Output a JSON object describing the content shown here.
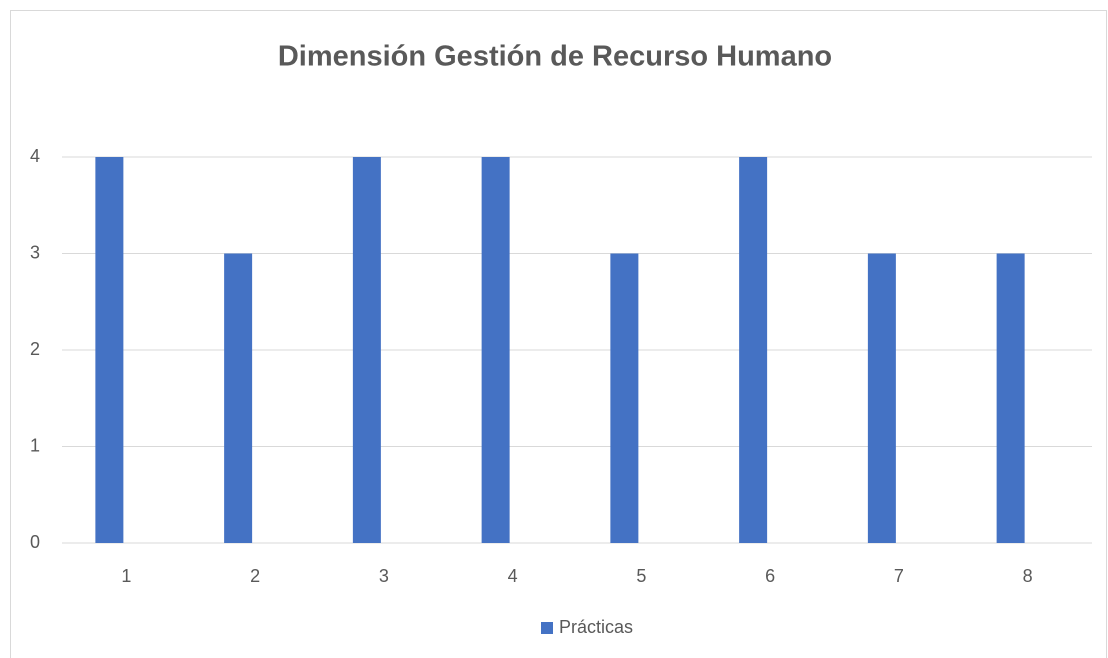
{
  "chart_data": {
    "type": "bar",
    "title": "Dimensión Gestión de Recurso Humano",
    "categories": [
      "1",
      "2",
      "3",
      "4",
      "5",
      "6",
      "7",
      "8"
    ],
    "series": [
      {
        "name": "Prácticas",
        "color": "#4472c4",
        "values": [
          4,
          3,
          4,
          4,
          3,
          4,
          3,
          3
        ]
      }
    ],
    "ylim": [
      0,
      4
    ],
    "yticks": [
      0,
      1,
      2,
      3,
      4
    ],
    "grid": true,
    "legend": "bottom"
  }
}
